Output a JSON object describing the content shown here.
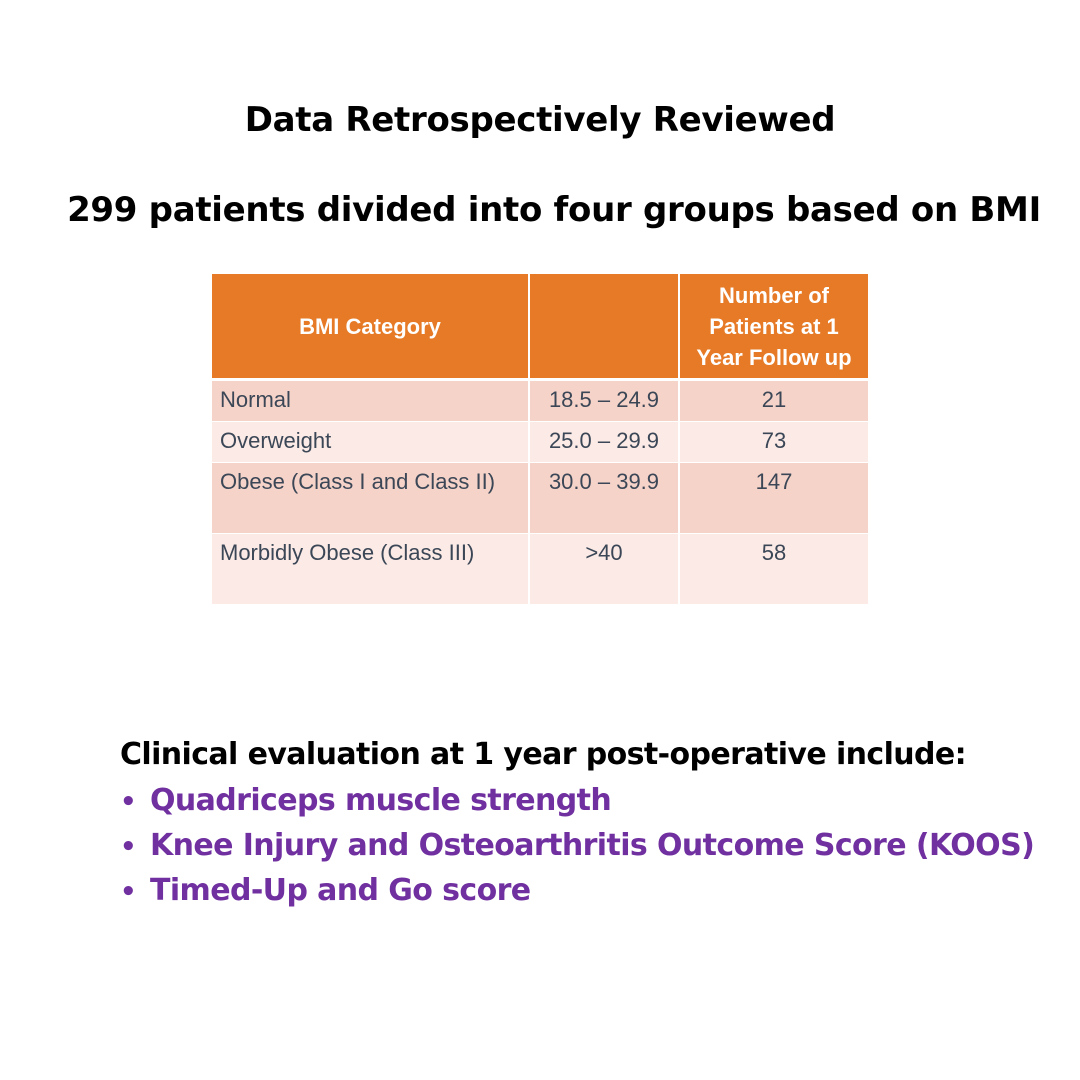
{
  "title": "Data Retrospectively Reviewed",
  "subtitle": "299 patients divided into four groups based on BMI",
  "table": {
    "headers": [
      "BMI Category",
      "",
      "Number of Patients at 1 Year Follow up"
    ],
    "rows": [
      {
        "category": "Normal",
        "range": "18.5 – 24.9",
        "count": "21"
      },
      {
        "category": "Overweight",
        "range": "25.0 – 29.9",
        "count": "73"
      },
      {
        "category": "Obese (Class I and Class II)",
        "range": "30.0 – 39.9",
        "count": "147"
      },
      {
        "category": "Morbidly Obese (Class III)",
        "range": ">40",
        "count": "58"
      }
    ],
    "colors": {
      "header_bg": "#e67a26",
      "row_odd_bg": "#f6d3c9",
      "row_even_bg": "#fbeae6"
    }
  },
  "evaluation": {
    "heading": "Clinical evaluation at 1 year post-operative include:",
    "bullet_symbol": "•",
    "items": [
      "Quadriceps muscle strength",
      "Knee Injury and Osteoarthritis Outcome Score (KOOS)",
      "Timed-Up and Go score"
    ],
    "item_color": "#7030a0"
  }
}
